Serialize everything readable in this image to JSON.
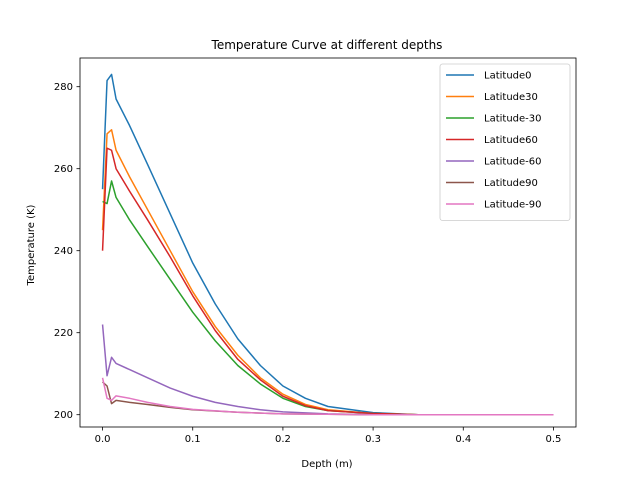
{
  "chart_data": {
    "type": "line",
    "title": "Temperature Curve at different depths",
    "xlabel": "Depth (m)",
    "ylabel": "Temperature (K)",
    "xlim": [
      -0.025,
      0.525
    ],
    "ylim": [
      197,
      287
    ],
    "xticks": [
      0.0,
      0.1,
      0.2,
      0.3,
      0.4,
      0.5
    ],
    "xtick_labels": [
      "0.0",
      "0.1",
      "0.2",
      "0.3",
      "0.4",
      "0.5"
    ],
    "yticks": [
      200,
      220,
      240,
      260,
      280
    ],
    "ytick_labels": [
      "200",
      "220",
      "240",
      "260",
      "280"
    ],
    "grid": false,
    "legend_position": "top-right",
    "series": [
      {
        "name": "Latitude0",
        "color": "#1f77b4",
        "x": [
          0.0,
          0.005,
          0.01,
          0.015,
          0.03,
          0.05,
          0.075,
          0.1,
          0.125,
          0.15,
          0.175,
          0.2,
          0.225,
          0.25,
          0.3,
          0.35,
          0.4,
          0.45,
          0.5
        ],
        "y": [
          255,
          281.5,
          283,
          277,
          270.5,
          261,
          249,
          237,
          227,
          218.5,
          212,
          207,
          204,
          202,
          200.5,
          200,
          200,
          200,
          200
        ]
      },
      {
        "name": "Latitude30",
        "color": "#ff7f0e",
        "x": [
          0.0,
          0.005,
          0.01,
          0.015,
          0.03,
          0.05,
          0.075,
          0.1,
          0.125,
          0.15,
          0.175,
          0.2,
          0.225,
          0.25,
          0.3,
          0.35,
          0.4,
          0.45,
          0.5
        ],
        "y": [
          245,
          268.5,
          269.5,
          264.5,
          258,
          250,
          240,
          230,
          221.5,
          214.5,
          209,
          205,
          202.5,
          201.2,
          200.3,
          200,
          200,
          200,
          200
        ]
      },
      {
        "name": "Latitude-30",
        "color": "#2ca02c",
        "x": [
          0.0,
          0.005,
          0.01,
          0.015,
          0.03,
          0.05,
          0.075,
          0.1,
          0.125,
          0.15,
          0.175,
          0.2,
          0.225,
          0.25,
          0.3,
          0.35,
          0.4,
          0.45,
          0.5
        ],
        "y": [
          252,
          251.5,
          257,
          253,
          247.5,
          241,
          233,
          225,
          218,
          212,
          207.5,
          204,
          202,
          201,
          200.3,
          200,
          200,
          200,
          200
        ]
      },
      {
        "name": "Latitude60",
        "color": "#d62728",
        "x": [
          0.0,
          0.005,
          0.01,
          0.015,
          0.03,
          0.05,
          0.075,
          0.1,
          0.125,
          0.15,
          0.175,
          0.2,
          0.225,
          0.25,
          0.3,
          0.35,
          0.4,
          0.45,
          0.5
        ],
        "y": [
          240,
          265,
          264.5,
          260,
          254.5,
          247.5,
          238.5,
          229,
          220.5,
          213.5,
          208.5,
          204.5,
          202.2,
          201,
          200.3,
          200,
          200,
          200,
          200
        ]
      },
      {
        "name": "Latitude-60",
        "color": "#9467bd",
        "x": [
          0.0,
          0.005,
          0.01,
          0.015,
          0.03,
          0.05,
          0.075,
          0.1,
          0.125,
          0.15,
          0.175,
          0.2,
          0.25,
          0.3,
          0.35,
          0.4,
          0.45,
          0.5
        ],
        "y": [
          222,
          209.5,
          214,
          212.5,
          211,
          209,
          206.5,
          204.5,
          203,
          202,
          201.2,
          200.7,
          200.2,
          200,
          200,
          200,
          200,
          200
        ]
      },
      {
        "name": "Latitude90",
        "color": "#8c564b",
        "x": [
          0.0,
          0.005,
          0.01,
          0.015,
          0.03,
          0.05,
          0.075,
          0.1,
          0.15,
          0.2,
          0.25,
          0.3,
          0.35,
          0.4,
          0.45,
          0.5
        ],
        "y": [
          208,
          207,
          202.7,
          203.5,
          203,
          202.5,
          201.8,
          201.2,
          200.6,
          200.2,
          200.1,
          200,
          200,
          200,
          200,
          200
        ]
      },
      {
        "name": "Latitude-90",
        "color": "#e377c2",
        "x": [
          0.0,
          0.005,
          0.01,
          0.015,
          0.03,
          0.05,
          0.075,
          0.1,
          0.15,
          0.2,
          0.25,
          0.3,
          0.35,
          0.4,
          0.45,
          0.5
        ],
        "y": [
          209,
          204,
          203.5,
          204.6,
          204,
          203,
          202,
          201.3,
          200.6,
          200.2,
          200.1,
          200,
          200,
          200,
          200,
          200
        ]
      }
    ]
  }
}
